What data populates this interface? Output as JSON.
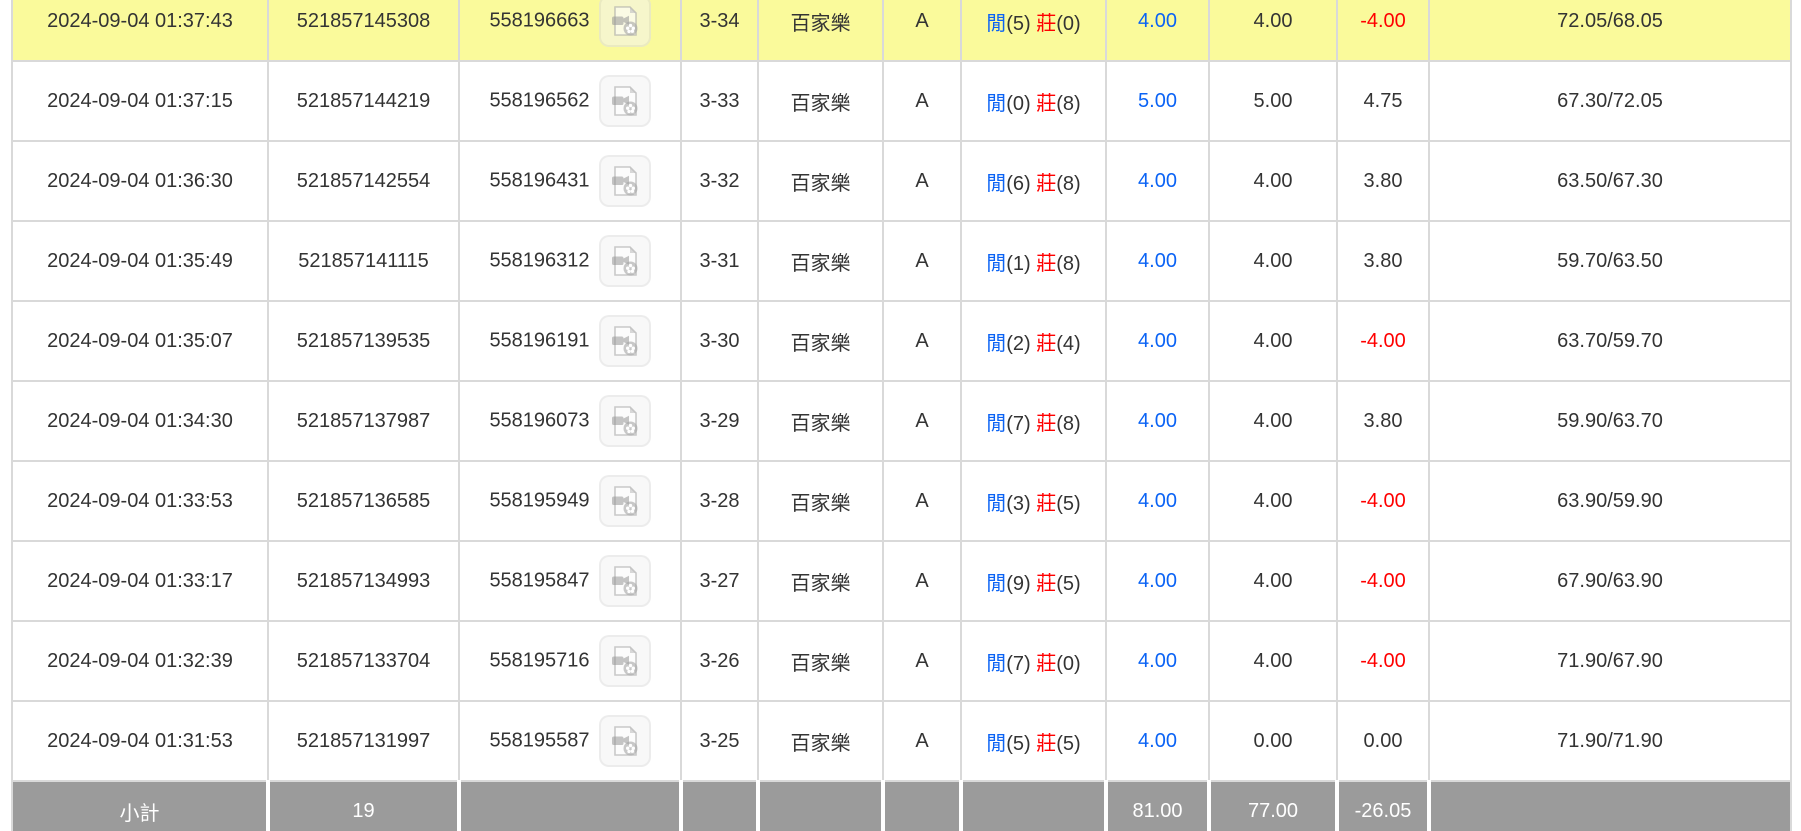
{
  "colors": {
    "highlight": "#fafa9b",
    "footer_bg": "#9b9b9b",
    "blue": "#0b63f5",
    "red": "#ff0000",
    "text": "#333333",
    "border": "#d9d9d9"
  },
  "table": {
    "result_labels": {
      "player": "閒",
      "banker": "莊"
    },
    "icon_name": "video-file-icon",
    "rows": [
      {
        "time": "2024-09-04 01:37:43",
        "bet_id": "521857145308",
        "round_id": "558196663",
        "table_round": "3-34",
        "game": "百家樂",
        "table_code": "A",
        "player": "5",
        "banker": "0",
        "bet": "4.00",
        "valid": "4.00",
        "winloss": "-4.00",
        "balance": "72.05/68.05",
        "highlighted": true
      },
      {
        "time": "2024-09-04 01:37:15",
        "bet_id": "521857144219",
        "round_id": "558196562",
        "table_round": "3-33",
        "game": "百家樂",
        "table_code": "A",
        "player": "0",
        "banker": "8",
        "bet": "5.00",
        "valid": "5.00",
        "winloss": "4.75",
        "balance": "67.30/72.05",
        "highlighted": false
      },
      {
        "time": "2024-09-04 01:36:30",
        "bet_id": "521857142554",
        "round_id": "558196431",
        "table_round": "3-32",
        "game": "百家樂",
        "table_code": "A",
        "player": "6",
        "banker": "8",
        "bet": "4.00",
        "valid": "4.00",
        "winloss": "3.80",
        "balance": "63.50/67.30",
        "highlighted": false
      },
      {
        "time": "2024-09-04 01:35:49",
        "bet_id": "521857141115",
        "round_id": "558196312",
        "table_round": "3-31",
        "game": "百家樂",
        "table_code": "A",
        "player": "1",
        "banker": "8",
        "bet": "4.00",
        "valid": "4.00",
        "winloss": "3.80",
        "balance": "59.70/63.50",
        "highlighted": false
      },
      {
        "time": "2024-09-04 01:35:07",
        "bet_id": "521857139535",
        "round_id": "558196191",
        "table_round": "3-30",
        "game": "百家樂",
        "table_code": "A",
        "player": "2",
        "banker": "4",
        "bet": "4.00",
        "valid": "4.00",
        "winloss": "-4.00",
        "balance": "63.70/59.70",
        "highlighted": false
      },
      {
        "time": "2024-09-04 01:34:30",
        "bet_id": "521857137987",
        "round_id": "558196073",
        "table_round": "3-29",
        "game": "百家樂",
        "table_code": "A",
        "player": "7",
        "banker": "8",
        "bet": "4.00",
        "valid": "4.00",
        "winloss": "3.80",
        "balance": "59.90/63.70",
        "highlighted": false
      },
      {
        "time": "2024-09-04 01:33:53",
        "bet_id": "521857136585",
        "round_id": "558195949",
        "table_round": "3-28",
        "game": "百家樂",
        "table_code": "A",
        "player": "3",
        "banker": "5",
        "bet": "4.00",
        "valid": "4.00",
        "winloss": "-4.00",
        "balance": "63.90/59.90",
        "highlighted": false
      },
      {
        "time": "2024-09-04 01:33:17",
        "bet_id": "521857134993",
        "round_id": "558195847",
        "table_round": "3-27",
        "game": "百家樂",
        "table_code": "A",
        "player": "9",
        "banker": "5",
        "bet": "4.00",
        "valid": "4.00",
        "winloss": "-4.00",
        "balance": "67.90/63.90",
        "highlighted": false
      },
      {
        "time": "2024-09-04 01:32:39",
        "bet_id": "521857133704",
        "round_id": "558195716",
        "table_round": "3-26",
        "game": "百家樂",
        "table_code": "A",
        "player": "7",
        "banker": "0",
        "bet": "4.00",
        "valid": "4.00",
        "winloss": "-4.00",
        "balance": "71.90/67.90",
        "highlighted": false
      },
      {
        "time": "2024-09-04 01:31:53",
        "bet_id": "521857131997",
        "round_id": "558195587",
        "table_round": "3-25",
        "game": "百家樂",
        "table_code": "A",
        "player": "5",
        "banker": "5",
        "bet": "4.00",
        "valid": "0.00",
        "winloss": "0.00",
        "balance": "71.90/71.90",
        "highlighted": false
      }
    ],
    "footer": {
      "label": "小計",
      "count": "19",
      "bet_total": "81.00",
      "valid_total": "77.00",
      "winloss_total": "-26.05"
    }
  }
}
